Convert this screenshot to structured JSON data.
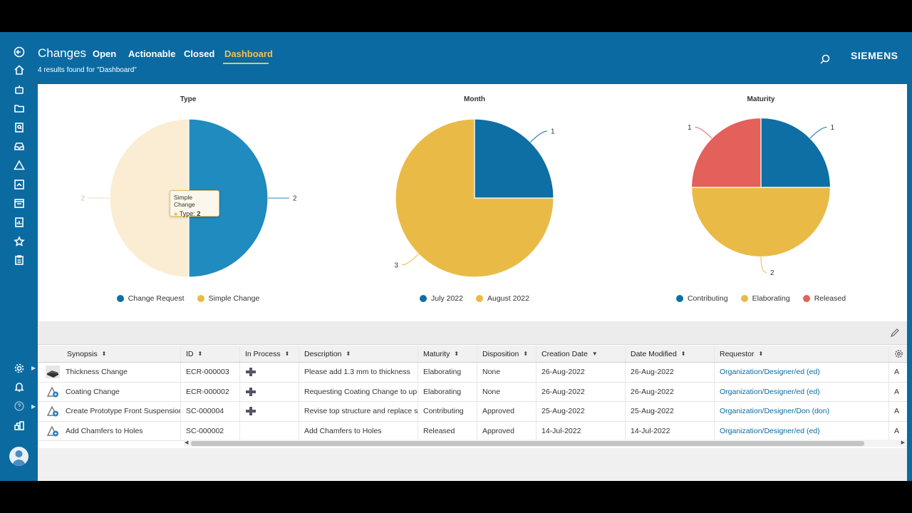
{
  "header": {
    "title": "Changes",
    "tabs": [
      "Open",
      "Actionable",
      "Closed",
      "Dashboard"
    ],
    "active_tab": "Dashboard",
    "results_text": "4 results found for \"Dashboard\"",
    "brand": "SIEMENS"
  },
  "sidebar": {
    "icons": [
      "back-icon",
      "home-icon",
      "inbox-robot-icon",
      "folder-icon",
      "search-doc-icon",
      "tray-icon",
      "warning-icon",
      "report-icon",
      "calendar-icon",
      "chart-doc-icon",
      "star-icon",
      "clipboard-icon",
      "settings-icon",
      "bell-icon",
      "help-icon",
      "org-icon"
    ]
  },
  "chart_data": [
    {
      "type": "pie",
      "title": "Type",
      "categories": [
        "Change Request",
        "Simple Change"
      ],
      "values": [
        2,
        2
      ],
      "colors": [
        "#1f8bbf",
        "#faedd3"
      ],
      "legend_colors": [
        "#0d6fa3",
        "#e9bb46"
      ],
      "labels": [
        "2",
        "2"
      ],
      "tooltip": {
        "series": "Simple Change",
        "label": "Type:",
        "value": "2"
      }
    },
    {
      "type": "pie",
      "title": "Month",
      "categories": [
        "July 2022",
        "August 2022"
      ],
      "values": [
        1,
        3
      ],
      "colors": [
        "#0d6fa3",
        "#e9bb46"
      ],
      "labels": [
        "1",
        "3"
      ]
    },
    {
      "type": "pie",
      "title": "Maturity",
      "categories": [
        "Contributing",
        "Elaborating",
        "Released"
      ],
      "values": [
        1,
        2,
        1
      ],
      "colors": [
        "#0d6fa3",
        "#e9bb46",
        "#e4605a"
      ],
      "labels": [
        "1",
        "2",
        "1"
      ]
    }
  ],
  "table": {
    "columns": [
      "Synopsis",
      "ID",
      "In Process",
      "Description",
      "Maturity",
      "Disposition",
      "Creation Date",
      "Date Modified",
      "Requestor"
    ],
    "rows": [
      {
        "synopsis": "Thickness Change",
        "id": "ECR-000003",
        "in_process": true,
        "description": "Please add 1.3 mm to thickness",
        "maturity": "Elaborating",
        "disposition": "None",
        "created": "26-Aug-2022",
        "modified": "26-Aug-2022",
        "requestor": "Organization/Designer/ed (ed)",
        "extra": "A",
        "icon": "part-icon"
      },
      {
        "synopsis": "Coating Change",
        "id": "ECR-000002",
        "in_process": true,
        "description": "Requesting Coating Change to up...",
        "maturity": "Elaborating",
        "disposition": "None",
        "created": "26-Aug-2022",
        "modified": "26-Aug-2022",
        "requestor": "Organization/Designer/ed (ed)",
        "extra": "A",
        "icon": "change-icon"
      },
      {
        "synopsis": "Create Prototype Front Suspension",
        "id": "SC-000004",
        "in_process": true,
        "description": "Revise top structure and replace st...",
        "maturity": "Contributing",
        "disposition": "Approved",
        "created": "25-Aug-2022",
        "modified": "25-Aug-2022",
        "requestor": "Organization/Designer/Don (don)",
        "extra": "A",
        "icon": "change-icon"
      },
      {
        "synopsis": "Add Chamfers to Holes",
        "id": "SC-000002",
        "in_process": false,
        "description": "Add Chamfers to Holes",
        "maturity": "Released",
        "disposition": "Approved",
        "created": "14-Jul-2022",
        "modified": "14-Jul-2022",
        "requestor": "Organization/Designer/ed (ed)",
        "extra": "A",
        "icon": "change-icon"
      }
    ]
  }
}
